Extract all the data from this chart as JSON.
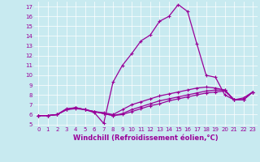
{
  "background_color": "#c8eaf0",
  "plot_bg_color": "#c8eaf0",
  "line_color": "#990099",
  "marker": "+",
  "markersize": 3,
  "linewidth": 0.9,
  "markeredgewidth": 0.8,
  "xlim": [
    -0.5,
    23.5
  ],
  "ylim": [
    4.8,
    17.5
  ],
  "yticks": [
    5,
    6,
    7,
    8,
    9,
    10,
    11,
    12,
    13,
    14,
    15,
    16,
    17
  ],
  "xticks": [
    0,
    1,
    2,
    3,
    4,
    5,
    6,
    7,
    8,
    9,
    10,
    11,
    12,
    13,
    14,
    15,
    16,
    17,
    18,
    19,
    20,
    21,
    22,
    23
  ],
  "xlabel": "Windchill (Refroidissement éolien,°C)",
  "xlabel_fontsize": 6,
  "tick_fontsize": 5,
  "grid_color": "#ffffff",
  "grid_linewidth": 0.5,
  "series": [
    {
      "x": [
        0,
        1,
        2,
        3,
        4,
        5,
        6,
        7,
        8,
        9,
        10,
        11,
        12,
        13,
        14,
        15,
        16,
        17,
        18,
        19,
        20,
        21,
        22,
        23
      ],
      "y": [
        5.9,
        5.9,
        6.0,
        6.5,
        6.6,
        6.5,
        6.2,
        5.1,
        9.3,
        11.0,
        12.2,
        13.5,
        14.1,
        15.5,
        16.0,
        17.2,
        16.5,
        13.2,
        10.0,
        9.8,
        8.0,
        7.5,
        7.7,
        8.3
      ]
    },
    {
      "x": [
        0,
        1,
        2,
        3,
        4,
        5,
        6,
        7,
        8,
        9,
        10,
        11,
        12,
        13,
        14,
        15,
        16,
        17,
        18,
        19,
        20,
        21,
        22,
        23
      ],
      "y": [
        5.9,
        5.9,
        6.0,
        6.6,
        6.7,
        6.5,
        6.3,
        6.2,
        6.0,
        6.5,
        7.0,
        7.3,
        7.6,
        7.9,
        8.1,
        8.3,
        8.5,
        8.7,
        8.8,
        8.7,
        8.5,
        7.5,
        7.5,
        8.3
      ]
    },
    {
      "x": [
        0,
        1,
        2,
        3,
        4,
        5,
        6,
        7,
        8,
        9,
        10,
        11,
        12,
        13,
        14,
        15,
        16,
        17,
        18,
        19,
        20,
        21,
        22,
        23
      ],
      "y": [
        5.9,
        5.9,
        6.0,
        6.5,
        6.7,
        6.5,
        6.3,
        6.1,
        5.9,
        6.1,
        6.5,
        6.8,
        7.1,
        7.4,
        7.6,
        7.8,
        8.0,
        8.2,
        8.4,
        8.5,
        8.5,
        7.5,
        7.5,
        8.3
      ]
    },
    {
      "x": [
        0,
        1,
        2,
        3,
        4,
        5,
        6,
        7,
        8,
        9,
        10,
        11,
        12,
        13,
        14,
        15,
        16,
        17,
        18,
        19,
        20,
        21,
        22,
        23
      ],
      "y": [
        5.9,
        5.9,
        6.0,
        6.5,
        6.7,
        6.5,
        6.3,
        6.1,
        5.9,
        6.0,
        6.3,
        6.6,
        6.9,
        7.1,
        7.4,
        7.6,
        7.8,
        8.0,
        8.2,
        8.3,
        8.4,
        7.5,
        7.5,
        8.3
      ]
    }
  ]
}
